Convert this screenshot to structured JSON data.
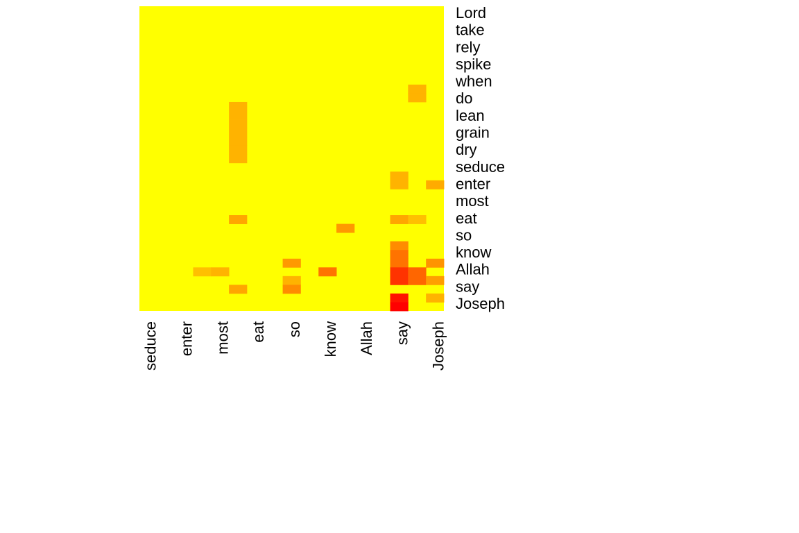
{
  "chart_data": {
    "type": "heatmap",
    "title": "",
    "xlabel": "",
    "ylabel": "",
    "color_low": "#FFFF00",
    "color_high": "#FF0000",
    "value_range": [
      0,
      1
    ],
    "x_tick_labels": [
      "seduce",
      "enter",
      "most",
      "eat",
      "so",
      "know",
      "Allah",
      "say",
      "Joseph"
    ],
    "y_tick_labels": [
      "Lord",
      "take",
      "rely",
      "spike",
      "when",
      "do",
      "lean",
      "grain",
      "dry",
      "seduce",
      "enter",
      "most",
      "eat",
      "so",
      "know",
      "Allah",
      "say",
      "Joseph"
    ],
    "column_count": 17,
    "row_count": 35,
    "cells": [
      {
        "col": 15,
        "row": 9,
        "value": 0.3
      },
      {
        "col": 15,
        "row": 10,
        "value": 0.3
      },
      {
        "col": 5,
        "row": 11,
        "value": 0.3
      },
      {
        "col": 5,
        "row": 12,
        "value": 0.3
      },
      {
        "col": 5,
        "row": 13,
        "value": 0.3
      },
      {
        "col": 5,
        "row": 14,
        "value": 0.3
      },
      {
        "col": 5,
        "row": 15,
        "value": 0.3
      },
      {
        "col": 5,
        "row": 16,
        "value": 0.3
      },
      {
        "col": 5,
        "row": 17,
        "value": 0.3
      },
      {
        "col": 14,
        "row": 19,
        "value": 0.3
      },
      {
        "col": 14,
        "row": 20,
        "value": 0.3
      },
      {
        "col": 16,
        "row": 20,
        "value": 0.33
      },
      {
        "col": 5,
        "row": 24,
        "value": 0.35
      },
      {
        "col": 14,
        "row": 24,
        "value": 0.35
      },
      {
        "col": 15,
        "row": 24,
        "value": 0.25
      },
      {
        "col": 11,
        "row": 25,
        "value": 0.4
      },
      {
        "col": 14,
        "row": 27,
        "value": 0.45
      },
      {
        "col": 14,
        "row": 28,
        "value": 0.55
      },
      {
        "col": 14,
        "row": 29,
        "value": 0.55
      },
      {
        "col": 8,
        "row": 29,
        "value": 0.4
      },
      {
        "col": 16,
        "row": 29,
        "value": 0.42
      },
      {
        "col": 3,
        "row": 30,
        "value": 0.25
      },
      {
        "col": 4,
        "row": 30,
        "value": 0.3
      },
      {
        "col": 10,
        "row": 30,
        "value": 0.55
      },
      {
        "col": 14,
        "row": 30,
        "value": 0.8
      },
      {
        "col": 15,
        "row": 30,
        "value": 0.6
      },
      {
        "col": 8,
        "row": 31,
        "value": 0.3
      },
      {
        "col": 14,
        "row": 31,
        "value": 0.8
      },
      {
        "col": 15,
        "row": 31,
        "value": 0.6
      },
      {
        "col": 16,
        "row": 31,
        "value": 0.38
      },
      {
        "col": 5,
        "row": 32,
        "value": 0.35
      },
      {
        "col": 8,
        "row": 32,
        "value": 0.45
      },
      {
        "col": 16,
        "row": 33,
        "value": 0.3
      },
      {
        "col": 14,
        "row": 33,
        "value": 0.92
      },
      {
        "col": 14,
        "row": 34,
        "value": 1.0
      }
    ]
  }
}
